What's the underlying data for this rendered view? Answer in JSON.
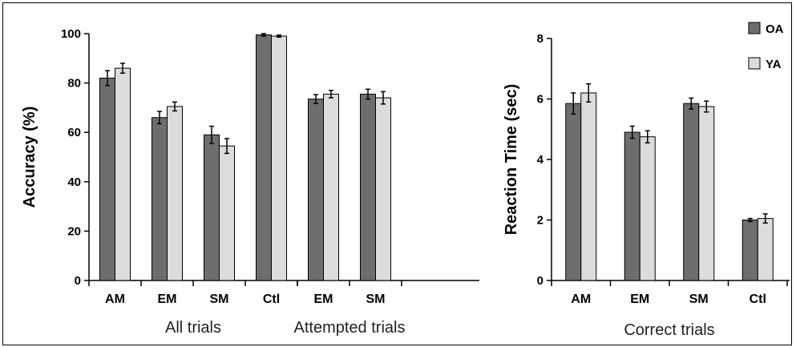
{
  "chart_data": [
    {
      "type": "bar",
      "ylabel": "Accuracy (%)",
      "ylim": [
        0,
        100
      ],
      "yticks": [
        "0",
        "20",
        "40",
        "60",
        "80",
        "100"
      ],
      "groups": [
        {
          "label": "All trials",
          "categories": [
            "AM",
            "EM",
            "SM",
            "Ctl"
          ],
          "series": [
            {
              "name": "OA",
              "values": [
                82,
                66,
                59,
                99.5
              ],
              "errors": [
                3,
                2.5,
                3.5,
                0.5
              ]
            },
            {
              "name": "YA",
              "values": [
                86,
                70.5,
                54.5,
                99
              ],
              "errors": [
                2,
                1.8,
                3,
                0.4
              ]
            }
          ]
        },
        {
          "label": "Attempted trials",
          "categories": [
            "EM",
            "SM"
          ],
          "series": [
            {
              "name": "OA",
              "values": [
                73.5,
                75.5
              ],
              "errors": [
                1.8,
                2
              ]
            },
            {
              "name": "YA",
              "values": [
                75.5,
                74
              ],
              "errors": [
                1.5,
                2.5
              ]
            }
          ]
        }
      ]
    },
    {
      "type": "bar",
      "ylabel": "Reaction Time (sec)",
      "ylim": [
        0,
        8
      ],
      "yticks": [
        "0",
        "2",
        "4",
        "6",
        "8"
      ],
      "groups": [
        {
          "label": "Correct trials",
          "categories": [
            "AM",
            "EM",
            "SM",
            "Ctl"
          ],
          "series": [
            {
              "name": "OA",
              "values": [
                5.85,
                4.9,
                5.85,
                2.0
              ],
              "errors": [
                0.35,
                0.2,
                0.18,
                0.05
              ]
            },
            {
              "name": "YA",
              "values": [
                6.2,
                4.75,
                5.75,
                2.05
              ],
              "errors": [
                0.3,
                0.2,
                0.18,
                0.15
              ]
            }
          ]
        }
      ]
    }
  ],
  "legend": [
    {
      "name": "OA",
      "color": "#6e6e6e"
    },
    {
      "name": "YA",
      "color": "#dcdcdc"
    }
  ]
}
